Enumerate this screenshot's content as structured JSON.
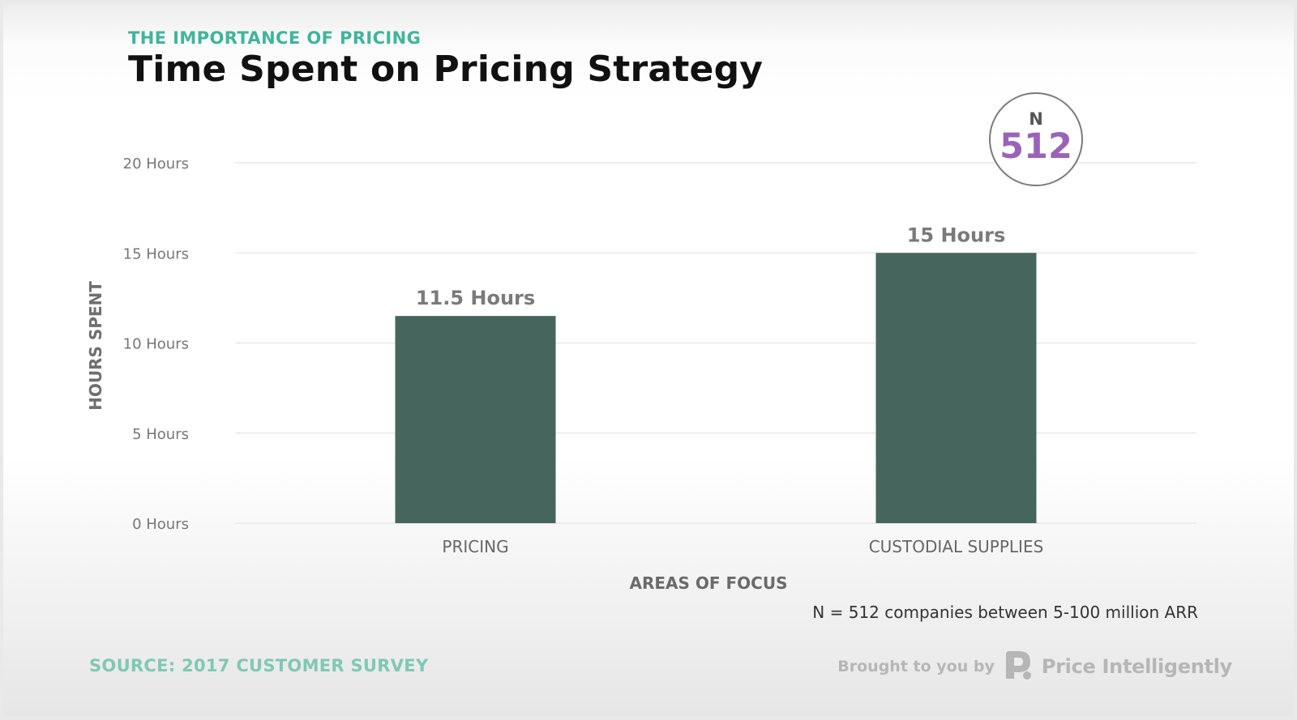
{
  "header": {
    "eyebrow": "THE IMPORTANCE OF PRICING",
    "title": "Time Spent on Pricing Strategy"
  },
  "badge": {
    "label": "N",
    "value": "512"
  },
  "footnote": "N = 512 companies between 5-100 million ARR",
  "source": "SOURCE: 2017 CUSTOMER SURVEY",
  "brand": {
    "prefix": "Brought to you by",
    "name": "Price Intelligently",
    "logo_icon": "price-intelligently-logo-icon"
  },
  "colors": {
    "bar": "#46665d",
    "eyebrow": "#3fb59b",
    "badge_value": "#9a63b8",
    "source": "#7fc8b4"
  },
  "chart_data": {
    "type": "bar",
    "categories": [
      "PRICING",
      "CUSTODIAL SUPPLIES"
    ],
    "values": [
      11.5,
      15
    ],
    "data_labels": [
      "11.5 Hours",
      "15 Hours"
    ],
    "xlabel": "AREAS OF FOCUS",
    "ylabel": "HOURS SPENT",
    "ylim": [
      0,
      20
    ],
    "yticks": [
      0,
      5,
      10,
      15,
      20
    ],
    "ytick_labels": [
      "0 Hours",
      "5 Hours",
      "10 Hours",
      "15 Hours",
      "20 Hours"
    ],
    "grid": true,
    "legend": "none"
  }
}
